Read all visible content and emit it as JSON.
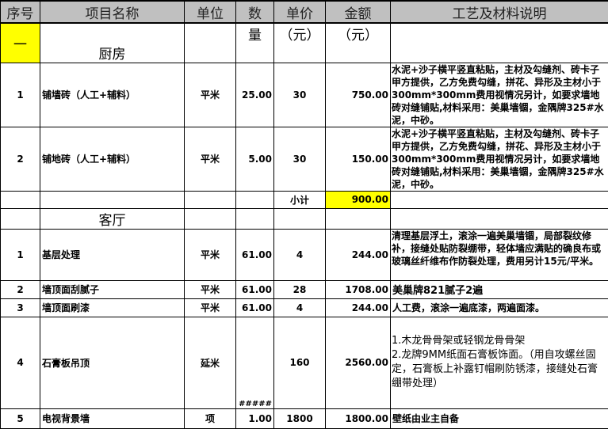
{
  "header": {
    "seq": "序号",
    "name": "项目名称",
    "unit": "单位",
    "qty": "数",
    "price": "单价",
    "amount": "金额",
    "desc": "工艺及材料说明"
  },
  "header2": {
    "qty": "量",
    "price": "（元）",
    "amount": "（元）"
  },
  "kitchen": {
    "seq": "一",
    "title": "厨房",
    "rows": [
      {
        "seq": "1",
        "name": "铺墙砖（人工+辅料）",
        "unit": "平米",
        "qty": "25.00",
        "price": "30",
        "amount": "750.00",
        "desc": "水泥+沙子横平竖直粘贴，主材及勾缝剂、砖卡子甲方提供，乙方免费勾缝，拼花、异形及主材小于300mm*300mm费用视情况另计，如要求墙地砖对缝铺贴,材料采用：美巢墙锢，金隅牌325#水泥，中砂。"
      },
      {
        "seq": "2",
        "name": "铺地砖（人工+辅料）",
        "unit": "平米",
        "qty": "5.00",
        "price": "30",
        "amount": "150.00",
        "desc": "水泥+沙子横平竖直粘贴，主材及勾缝剂、砖卡子甲方提供，乙方免费勾缝，拼花、异形及主材小于300mm*300mm费用视情况另计，如要求墙地砖对缝铺贴,材料采用：美巢墙锢，金隅牌325#水泥，中砂。"
      }
    ],
    "subtotal_label": "小计",
    "subtotal": "900.00"
  },
  "living": {
    "title": "客厅",
    "rows": [
      {
        "seq": "1",
        "name": "基层处理",
        "unit": "平米",
        "qty": "61.00",
        "price": "4",
        "amount": "244.00",
        "desc": "清理基层浮土，滚涂一遍美巢墙锢，局部裂纹修补，接缝处贴防裂绷带，轻体墙应满贴的确良布或玻璃丝纤维布作防裂处理，费用另计15元/平米。"
      },
      {
        "seq": "2",
        "name": "墙顶面刮腻子",
        "unit": "平米",
        "qty": "61.00",
        "price": "28",
        "amount": "1708.00",
        "desc": "美巢牌821腻子2遍"
      },
      {
        "seq": "3",
        "name": "墙顶面刷漆",
        "unit": "平米",
        "qty": "61.00",
        "price": "4",
        "amount": "244.00",
        "desc": "人工费，滚涂一遍底漆，两遍面漆。"
      },
      {
        "seq": "4",
        "name": "石膏板吊顶",
        "unit": "延米",
        "qty": "#####",
        "price": "160",
        "amount": "2560.00",
        "desc1": "1.木龙骨骨架或轻钢龙骨骨架",
        "desc2": "2.龙牌9MM纸面石膏板饰面。（用自攻螺丝固定，石膏板上补露钉帽刷防锈漆，接缝处石膏绷带处理）"
      },
      {
        "seq": "5",
        "name": "电视背景墙",
        "unit": "项",
        "qty": "1.00",
        "price": "1800",
        "amount": "1800.00",
        "desc": "壁纸由业主自备"
      }
    ]
  },
  "colors": {
    "header_bg": "#c0c0c0",
    "highlight": "#ffff00"
  }
}
